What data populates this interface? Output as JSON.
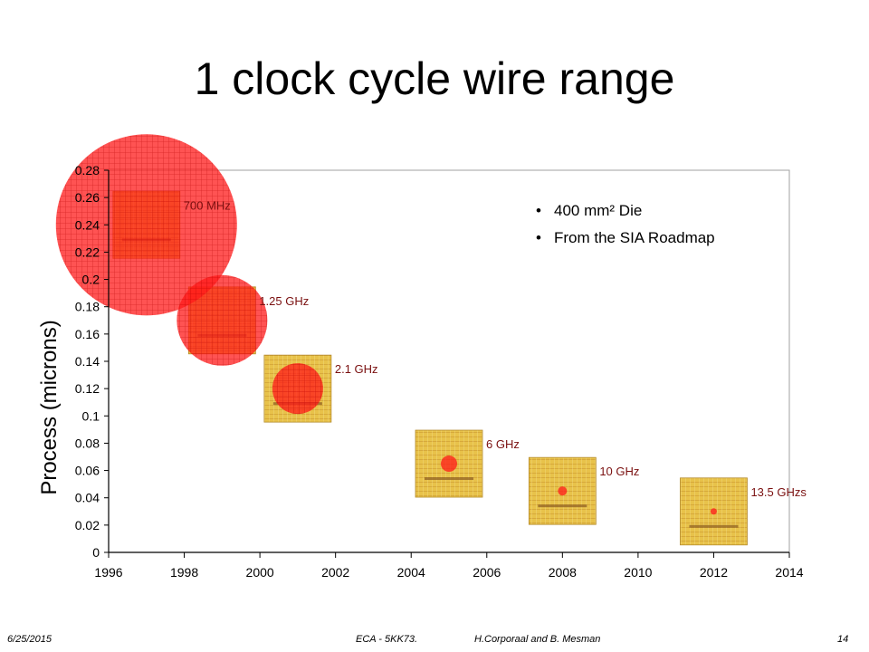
{
  "slide": {
    "title": "1 clock cycle wire range"
  },
  "footer": {
    "date": "6/25/2015",
    "course": "ECA - 5KK73.",
    "authors": "H.Corporaal  and B. Mesman",
    "page": "14"
  },
  "colors": {
    "circle": "#ff1a1a",
    "grid": "#b40000",
    "chip": "#e8c24a",
    "label": "#7a1010",
    "axis_box": "#a0a0a0"
  },
  "chart_data": {
    "type": "scatter",
    "ylabel": "Process (microns)",
    "xlim": [
      1996,
      2014
    ],
    "ylim": [
      0,
      0.28
    ],
    "x_ticks": [
      "1996",
      "1998",
      "2000",
      "2002",
      "2004",
      "2006",
      "2008",
      "2010",
      "2012",
      "2014"
    ],
    "y_ticks": [
      "0",
      "0.02",
      "0.04",
      "0.06",
      "0.08",
      "0.1",
      "0.12",
      "0.14",
      "0.16",
      "0.18",
      "0.2",
      "0.22",
      "0.24",
      "0.26",
      "0.28"
    ],
    "points": [
      {
        "label": "700 MHz",
        "x": 1997,
        "y": 0.24,
        "reach_fraction": 1.0
      },
      {
        "label": "1.25 GHz",
        "x": 1999,
        "y": 0.17,
        "reach_fraction": 0.5
      },
      {
        "label": "2.1 GHz",
        "x": 2001,
        "y": 0.12,
        "reach_fraction": 0.28
      },
      {
        "label": "6 GHz",
        "x": 2005,
        "y": 0.065,
        "reach_fraction": 0.09
      },
      {
        "label": "10 GHz",
        "x": 2008,
        "y": 0.045,
        "reach_fraction": 0.05
      },
      {
        "label": "13.5 GHzs",
        "x": 2012,
        "y": 0.03,
        "reach_fraction": 0.025
      }
    ],
    "annotations": [
      "400 mm² Die",
      "From the SIA Roadmap"
    ]
  }
}
